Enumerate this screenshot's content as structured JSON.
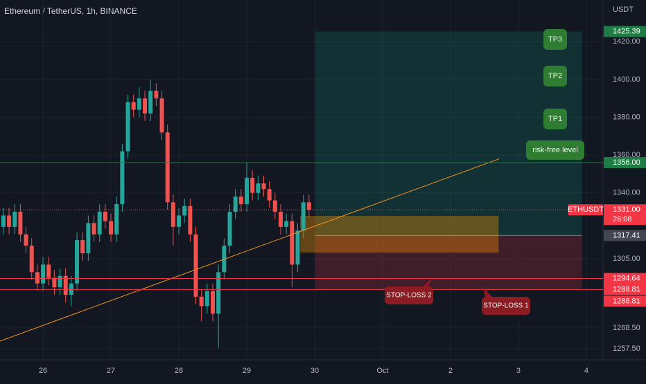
{
  "chart_data": {
    "type": "candlestick",
    "title": "Ethereum / TetherUS, 1h, BINANCE",
    "y_unit": "USDT",
    "x": [
      -14,
      -12,
      -10,
      -8,
      -6,
      -4,
      -2,
      0,
      2,
      4,
      6,
      8,
      10,
      12,
      14,
      16,
      18,
      20,
      22,
      24,
      26,
      28,
      30,
      32,
      34,
      36,
      38,
      40,
      42,
      44,
      46,
      48,
      50,
      52,
      54,
      56,
      58,
      60,
      62,
      64,
      66,
      68,
      70,
      72,
      74,
      76,
      78,
      80,
      82,
      84,
      86,
      88,
      90,
      92,
      94
    ],
    "open": [
      1322,
      1328,
      1322,
      1330,
      1318,
      1312,
      1298,
      1292,
      1302,
      1295,
      1290,
      1296,
      1286,
      1292,
      1315,
      1308,
      1324,
      1318,
      1330,
      1325,
      1318,
      1334,
      1362,
      1388,
      1384,
      1390,
      1382,
      1394,
      1390,
      1372,
      1335,
      1322,
      1328,
      1333,
      1318,
      1285,
      1280,
      1288,
      1276,
      1298,
      1312,
      1330,
      1338,
      1334,
      1348,
      1340,
      1345,
      1342,
      1336,
      1330,
      1322,
      1325,
      1302,
      1320,
      1335
    ],
    "high": [
      1332,
      1332,
      1334,
      1334,
      1322,
      1316,
      1302,
      1306,
      1306,
      1299,
      1300,
      1300,
      1296,
      1319,
      1319,
      1328,
      1328,
      1334,
      1334,
      1329,
      1338,
      1366,
      1392,
      1392,
      1396,
      1394,
      1400,
      1398,
      1394,
      1376,
      1339,
      1332,
      1337,
      1337,
      1322,
      1289,
      1292,
      1292,
      1302,
      1316,
      1334,
      1342,
      1342,
      1356,
      1352,
      1349,
      1349,
      1346,
      1340,
      1334,
      1329,
      1329,
      1324,
      1339,
      1339
    ],
    "low": [
      1318,
      1318,
      1318,
      1314,
      1308,
      1294,
      1288,
      1288,
      1291,
      1286,
      1286,
      1282,
      1280,
      1288,
      1304,
      1304,
      1314,
      1314,
      1321,
      1314,
      1314,
      1330,
      1358,
      1380,
      1380,
      1378,
      1378,
      1386,
      1368,
      1331,
      1312,
      1318,
      1324,
      1314,
      1281,
      1272,
      1276,
      1272,
      1258,
      1294,
      1308,
      1326,
      1330,
      1330,
      1336,
      1336,
      1338,
      1332,
      1326,
      1318,
      1318,
      1290,
      1298,
      1316,
      1327
    ],
    "close": [
      1328,
      1322,
      1330,
      1318,
      1312,
      1298,
      1292,
      1302,
      1295,
      1290,
      1296,
      1286,
      1292,
      1315,
      1308,
      1324,
      1318,
      1330,
      1325,
      1318,
      1334,
      1362,
      1388,
      1384,
      1390,
      1382,
      1394,
      1390,
      1372,
      1335,
      1322,
      1328,
      1333,
      1318,
      1285,
      1280,
      1288,
      1276,
      1298,
      1312,
      1330,
      1338,
      1334,
      1348,
      1340,
      1345,
      1342,
      1336,
      1330,
      1322,
      1325,
      1302,
      1320,
      1335,
      1331
    ],
    "up_color": "#26a69a",
    "down_color": "#ef5350",
    "xlim": [
      -15.2,
      197.9
    ],
    "xticks": [
      {
        "value": 0,
        "label": "26"
      },
      {
        "value": 24,
        "label": "27"
      },
      {
        "value": 48,
        "label": "28"
      },
      {
        "value": 72,
        "label": "29"
      },
      {
        "value": 96,
        "label": "30"
      },
      {
        "value": 120,
        "label": "Oct"
      },
      {
        "value": 144,
        "label": "2"
      },
      {
        "value": 168,
        "label": "3"
      },
      {
        "value": 192,
        "label": "4"
      }
    ],
    "ylim": [
      1251.6,
      1442.1
    ],
    "yticks": [
      {
        "value": 1420,
        "label": "1420.00"
      },
      {
        "value": 1400,
        "label": "1400.00"
      },
      {
        "value": 1380,
        "label": "1380.00"
      },
      {
        "value": 1360,
        "label": "1360.00"
      },
      {
        "value": 1340,
        "label": "1340.00"
      },
      {
        "value": 1305,
        "label": "1305.00"
      },
      {
        "value": 1268.5,
        "label": "1268.50"
      },
      {
        "value": 1257.5,
        "label": "1257.50"
      }
    ],
    "symbol": "ETHUSDT",
    "countdown": "26:08",
    "last_price": {
      "value": 1331,
      "label": "1331.00"
    },
    "levels": [
      {
        "price": 1425.39,
        "color": "#1e7d44",
        "line": false
      },
      {
        "price": {
          "value": 1356,
          "label": "1356.00"
        },
        "color": "#1e7d44",
        "line": true
      },
      {
        "price": 1317.41,
        "color": "#434651",
        "line": false
      },
      {
        "price": 1294.64,
        "color": "#f23645",
        "line": true
      },
      {
        "price": 1288.81,
        "color": "#f23645",
        "line": true
      },
      {
        "price": 1288.81,
        "color": "#f23645",
        "line": false
      }
    ],
    "position": {
      "start": 96.2,
      "end": 190.5,
      "target": 1425.39,
      "entry": 1317.41,
      "stop": 1288.81
    },
    "zone": {
      "start": 90.9,
      "end": 161,
      "top": 1327.8,
      "bottom": 1308.4
    },
    "trendline": {
      "x": [
        -15.2,
        161.2
      ],
      "y": [
        1261.5,
        1358
      ]
    },
    "annotations": [
      "TP3",
      "TP2",
      "TP1",
      "risk-free level",
      "STOP-LOSS 2",
      "STOP-LOSS 1"
    ]
  }
}
